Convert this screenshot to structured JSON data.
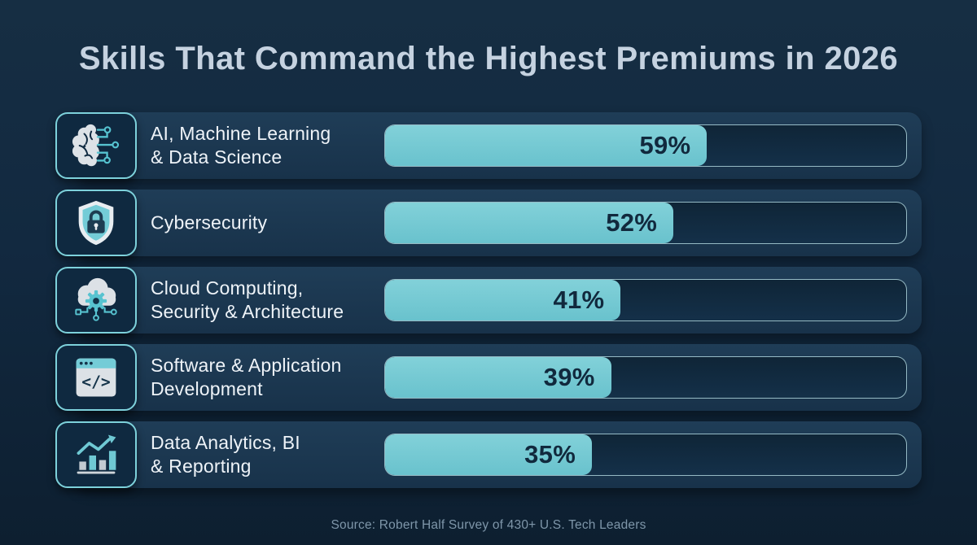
{
  "title": "Skills That Command the Highest Premiums in 2026",
  "source": "Source: Robert Half Survey of 430+ U.S. Tech Leaders",
  "colors": {
    "background": "#122940",
    "panel": "#1b3750",
    "accent_teal": "#74c9d3",
    "icon_border": "#7dd1db",
    "track": "#122c42",
    "track_border": "#add3dc",
    "title_text": "#c5d2e0",
    "label_text": "#eef3f8",
    "value_text": "#11293d",
    "source_text": "#7e96a9"
  },
  "chart_data": {
    "type": "bar",
    "orientation": "horizontal",
    "title": "Skills That Command the Highest Premiums in 2026",
    "categories": [
      "AI, Machine Learning & Data Science",
      "Cybersecurity",
      "Cloud Computing, Security & Architecture",
      "Software & Application Development",
      "Data Analytics, BI & Reporting"
    ],
    "values": [
      59,
      52,
      41,
      39,
      35
    ],
    "unit": "%",
    "xlim": [
      0,
      100
    ],
    "value_labels_inside_bars": true,
    "grid": false,
    "legend": false,
    "source": "Source: Robert Half Survey of 430+ U.S. Tech Leaders",
    "bar_color": "#74c9d3",
    "icons": [
      "brain-circuit",
      "shield-lock",
      "cloud-gear",
      "code-window",
      "bar-chart-growth"
    ]
  },
  "rows": [
    {
      "icon": "brain-circuit",
      "label_line1": "AI, Machine Learning",
      "label_line2": "& Data Science",
      "value": 59,
      "value_label": "59%"
    },
    {
      "icon": "shield-lock",
      "label_line1": "Cybersecurity",
      "label_line2": "",
      "value": 52,
      "value_label": "52%"
    },
    {
      "icon": "cloud-gear",
      "label_line1": "Cloud Computing,",
      "label_line2": "Security & Architecture",
      "value": 41,
      "value_label": "41%"
    },
    {
      "icon": "code-window",
      "label_line1": "Software & Application",
      "label_line2": "Development",
      "value": 39,
      "value_label": "39%"
    },
    {
      "icon": "bar-chart-growth",
      "label_line1": "Data Analytics, BI",
      "label_line2": "& Reporting",
      "value": 35,
      "value_label": "35%"
    }
  ]
}
